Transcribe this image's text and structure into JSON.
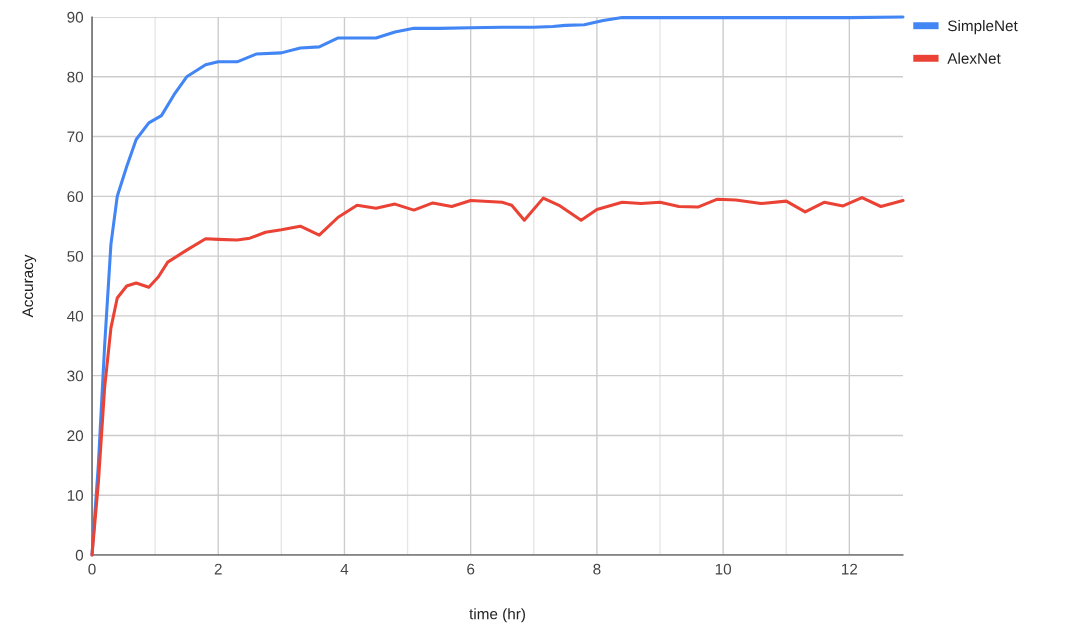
{
  "chart_data": {
    "type": "line",
    "xlabel": "time (hr)",
    "ylabel": "Accuracy",
    "xlim": [
      0,
      12.85
    ],
    "ylim": [
      0,
      90
    ],
    "xticks": [
      0,
      {
        "value": 1,
        "label": null
      },
      2,
      {
        "value": 3,
        "label": null
      },
      4,
      {
        "value": 5,
        "label": null
      },
      6,
      {
        "value": 7,
        "label": null
      },
      8,
      {
        "value": 9,
        "label": null
      },
      10,
      {
        "value": 11,
        "label": null
      },
      12
    ],
    "yticks": [
      0,
      10,
      20,
      30,
      40,
      50,
      60,
      70,
      80,
      90
    ],
    "grid": true,
    "legend": "top right",
    "marker": "none",
    "line_style": "solid",
    "series": [
      {
        "name": "SimpleNet",
        "color": "#4285f4",
        "x": [
          0,
          0.1,
          0.2,
          0.3,
          0.4,
          0.55,
          0.7,
          0.9,
          1.1,
          1.3,
          1.5,
          1.8,
          2.0,
          2.3,
          2.6,
          3.0,
          3.3,
          3.6,
          3.9,
          4.2,
          4.5,
          4.8,
          5.1,
          5.5,
          6.0,
          6.5,
          7.0,
          7.3,
          7.5,
          7.8,
          8.1,
          8.4,
          9,
          10,
          11,
          12,
          12.85
        ],
        "values": [
          0,
          15,
          35,
          52,
          60,
          65,
          69.5,
          72.3,
          73.5,
          77,
          80,
          82,
          82.5,
          82.5,
          83.8,
          84,
          84.8,
          85,
          86.5,
          86.5,
          86.5,
          87.5,
          88.1,
          88.1,
          88.2,
          88.3,
          88.3,
          88.4,
          88.6,
          88.7,
          89.4,
          89.9,
          89.9,
          89.9,
          89.9,
          89.9,
          90
        ]
      },
      {
        "name": "AlexNet",
        "color": "#ea4335",
        "x": [
          0,
          0.1,
          0.2,
          0.3,
          0.4,
          0.55,
          0.7,
          0.9,
          1.05,
          1.2,
          1.5,
          1.8,
          2.0,
          2.3,
          2.5,
          2.75,
          3.0,
          3.3,
          3.6,
          3.9,
          4.2,
          4.5,
          4.8,
          5.1,
          5.4,
          5.7,
          6.0,
          6.5,
          6.65,
          6.85,
          7.15,
          7.4,
          7.75,
          8.0,
          8.4,
          8.7,
          9.0,
          9.3,
          9.6,
          9.9,
          10.2,
          10.6,
          11.0,
          11.3,
          11.6,
          11.9,
          12.2,
          12.5,
          12.85
        ],
        "values": [
          0,
          12,
          28,
          38,
          43,
          45,
          45.5,
          44.8,
          46.5,
          49,
          51,
          52.9,
          52.8,
          52.7,
          53,
          54,
          54.4,
          55,
          53.5,
          56.5,
          58.5,
          58,
          58.7,
          57.7,
          58.9,
          58.3,
          59.3,
          59,
          58.5,
          56,
          59.7,
          58.5,
          56,
          57.8,
          59,
          58.8,
          59,
          58.3,
          58.2,
          59.5,
          59.4,
          58.8,
          59.2,
          57.4,
          59,
          58.4,
          59.8,
          58.3,
          59.3
        ]
      }
    ]
  }
}
